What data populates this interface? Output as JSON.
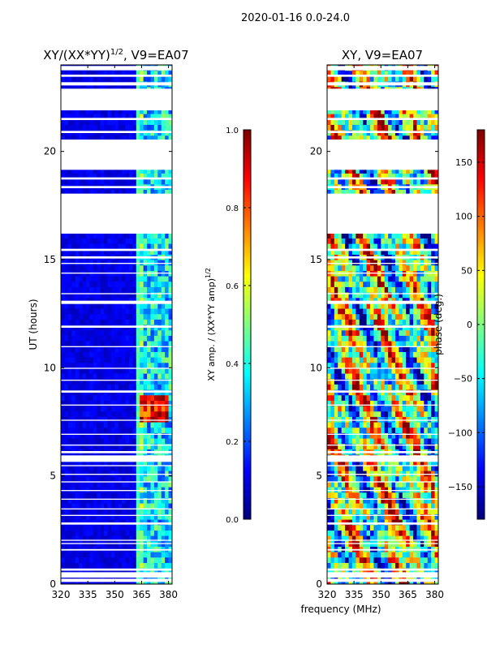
{
  "figure": {
    "suptitle": "2020-01-16 0.0-24.0",
    "xlabel": "frequency (MHz)"
  },
  "chart_data": [
    {
      "type": "heatmap",
      "title": "XY/(XX*YY)",
      "title_exponent": "1/2",
      "title_suffix": ", V9=EA07",
      "ylabel": "UT (hours)",
      "xlabel": "frequency (MHz)",
      "xlim": [
        320,
        382
      ],
      "ylim": [
        0,
        24
      ],
      "xticks": [
        320,
        335,
        350,
        365,
        380
      ],
      "yticks": [
        0,
        5,
        10,
        15,
        20
      ],
      "colormap": "jet",
      "colorbar": {
        "label": "XY amp. / (XX*YY amp)",
        "label_exponent": "1/2",
        "range": [
          0.0,
          1.0
        ],
        "ticks": [
          "0.0",
          "0.2",
          "0.4",
          "0.6",
          "0.8",
          "1.0"
        ],
        "tick_values": [
          0.0,
          0.2,
          0.4,
          0.6,
          0.8,
          1.0
        ]
      },
      "flagged_hours": [
        [
          0.1,
          0.25
        ],
        [
          0.3,
          0.55
        ],
        [
          0.62,
          0.72
        ],
        [
          1.55,
          1.62
        ],
        [
          1.85,
          1.9
        ],
        [
          2.0,
          2.05
        ],
        [
          2.75,
          2.85
        ],
        [
          3.15,
          3.2
        ],
        [
          3.45,
          3.5
        ],
        [
          3.9,
          3.95
        ],
        [
          4.3,
          4.35
        ],
        [
          4.7,
          4.75
        ],
        [
          5.05,
          5.1
        ],
        [
          5.45,
          5.5
        ],
        [
          5.65,
          5.95
        ],
        [
          6.05,
          6.15
        ],
        [
          6.4,
          6.45
        ],
        [
          6.9,
          6.95
        ],
        [
          7.55,
          7.6
        ],
        [
          8.25,
          8.3
        ],
        [
          8.85,
          8.95
        ],
        [
          9.4,
          9.45
        ],
        [
          9.95,
          10.0
        ],
        [
          10.95,
          11.0
        ],
        [
          11.85,
          11.95
        ],
        [
          12.95,
          13.1
        ],
        [
          13.4,
          13.45
        ],
        [
          14.35,
          14.4
        ],
        [
          14.8,
          14.85
        ],
        [
          15.05,
          15.15
        ],
        [
          15.4,
          15.5
        ],
        [
          16.2,
          18.05
        ],
        [
          18.3,
          18.4
        ],
        [
          18.7,
          18.8
        ],
        [
          19.15,
          20.55
        ],
        [
          20.85,
          20.95
        ],
        [
          21.45,
          21.55
        ],
        [
          21.9,
          22.9
        ],
        [
          23.05,
          23.2
        ],
        [
          23.45,
          23.55
        ],
        [
          23.75,
          23.95
        ]
      ],
      "band_features": [
        {
          "range_mhz": [
            320,
            363
          ],
          "ut_hours": [
            0,
            24
          ],
          "value": 0.1
        },
        {
          "range_mhz": [
            363,
            367
          ],
          "ut_hours": [
            0,
            24
          ],
          "value": 0.45
        },
        {
          "range_mhz": [
            367,
            382
          ],
          "ut_hours": [
            0,
            24
          ],
          "value": 0.35
        },
        {
          "range_mhz": [
            364,
            381
          ],
          "ut_hours": [
            7.6,
            8.8
          ],
          "value": 0.88
        }
      ]
    },
    {
      "type": "heatmap",
      "title": "XY, V9=EA07",
      "xlabel": "frequency (MHz)",
      "xlim": [
        320,
        382
      ],
      "ylim": [
        0,
        24
      ],
      "xticks": [
        320,
        335,
        350,
        365,
        380
      ],
      "yticks": [
        0,
        5,
        10,
        15,
        20
      ],
      "colormap": "jet",
      "colorbar": {
        "label": "phase (deg.)",
        "range": [
          -180,
          180
        ],
        "ticks": [
          "−150",
          "−100",
          "−50",
          "0",
          "50",
          "100",
          "150"
        ],
        "tick_values": [
          -150,
          -100,
          -50,
          0,
          50,
          100,
          150
        ]
      },
      "flagged_hours": [
        [
          0.1,
          0.25
        ],
        [
          0.3,
          0.55
        ],
        [
          0.62,
          0.72
        ],
        [
          1.55,
          1.62
        ],
        [
          1.85,
          1.9
        ],
        [
          2.0,
          2.05
        ],
        [
          2.75,
          2.85
        ],
        [
          3.15,
          3.2
        ],
        [
          3.45,
          3.5
        ],
        [
          3.9,
          3.95
        ],
        [
          4.3,
          4.35
        ],
        [
          4.7,
          4.75
        ],
        [
          5.05,
          5.1
        ],
        [
          5.45,
          5.5
        ],
        [
          5.65,
          5.95
        ],
        [
          6.05,
          6.15
        ],
        [
          6.4,
          6.45
        ],
        [
          6.9,
          6.95
        ],
        [
          7.55,
          7.6
        ],
        [
          8.25,
          8.3
        ],
        [
          8.85,
          8.95
        ],
        [
          9.4,
          9.45
        ],
        [
          9.95,
          10.0
        ],
        [
          10.95,
          11.0
        ],
        [
          11.85,
          11.95
        ],
        [
          12.95,
          13.1
        ],
        [
          13.4,
          13.45
        ],
        [
          14.35,
          14.4
        ],
        [
          14.8,
          14.85
        ],
        [
          15.05,
          15.15
        ],
        [
          15.4,
          15.5
        ],
        [
          16.2,
          18.05
        ],
        [
          18.3,
          18.4
        ],
        [
          18.7,
          18.8
        ],
        [
          19.15,
          20.55
        ],
        [
          20.85,
          20.95
        ],
        [
          21.45,
          21.55
        ],
        [
          21.9,
          22.9
        ],
        [
          23.05,
          23.2
        ],
        [
          23.45,
          23.55
        ],
        [
          23.75,
          23.95
        ]
      ]
    }
  ]
}
